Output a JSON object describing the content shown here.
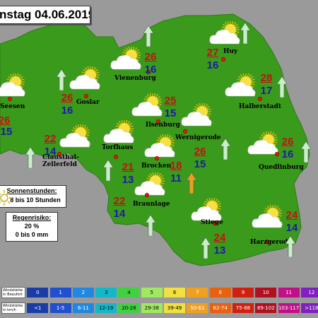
{
  "header": {
    "date_text": "nstag 04.06.2019"
  },
  "colors": {
    "land": "#3a9a1c",
    "background": "#9a9a9a",
    "temp_max": "#c41010",
    "temp_min": "#1a1aa8",
    "arrow_green": "#c8f0c8",
    "arrow_orange": "#e8a020"
  },
  "locations": [
    {
      "name": "Seesen",
      "max": "",
      "min": "15"
    },
    {
      "name": "Goslar",
      "max": "26",
      "min": "16"
    },
    {
      "name": "Vienenburg",
      "max": "26",
      "min": "16"
    },
    {
      "name": "Huy",
      "max": "27",
      "min": "16"
    },
    {
      "name": "Halberstadt",
      "max": "28",
      "min": "17"
    },
    {
      "name": "Ilsenburg",
      "max": "25",
      "min": "15"
    },
    {
      "name": "Wernigerode",
      "max": "",
      "min": ""
    },
    {
      "name": "Torfhaus",
      "max": "21",
      "min": "13"
    },
    {
      "name": "Clausthal-Zellerfeld",
      "max": "22",
      "min": "14"
    },
    {
      "name": "Brocken",
      "max": "18",
      "min": "11"
    },
    {
      "name": "Braunlage",
      "max": "22",
      "min": "14"
    },
    {
      "name": "Quedlinburg",
      "max": "26",
      "min": "16"
    },
    {
      "name": "Stiege",
      "max": "24",
      "min": "13"
    },
    {
      "name": "Harzgerode",
      "max": "24",
      "min": "14"
    },
    {
      "name": "",
      "max": "26",
      "min": "15"
    }
  ],
  "seesen_max_partial": "26",
  "sun_box": {
    "title": "Sonnenstunden:",
    "value": "8 bis 10 Stunden"
  },
  "rain_box": {
    "title": "Regenrisiko:",
    "value1": "20 %",
    "value2": "0 bis 0 mm"
  },
  "legend": {
    "row1_label": "Windstärke in Beaufort",
    "row2_label": "Windstärke in km/h",
    "beaufort": [
      "0",
      "1",
      "2",
      "3",
      "4",
      "5",
      "6",
      "7",
      "8",
      "9",
      "10",
      "11",
      "12"
    ],
    "kmh": [
      "<1",
      "1-5",
      "6-11",
      "12-19",
      "20-28",
      "29-38",
      "39-49",
      "50-61",
      "62-74",
      "75-88",
      "89-102",
      "103-117",
      ">118"
    ],
    "colors": [
      "#1a3ca8",
      "#2050d0",
      "#2088e0",
      "#10b8c8",
      "#40d040",
      "#a0e860",
      "#f0e040",
      "#f0a020",
      "#e86010",
      "#d02010",
      "#b01020",
      "#c01088",
      "#8020c0"
    ]
  },
  "icons": {
    "weather": "sun-cloud-icon",
    "wind": "wind-arrow-icon",
    "sun": "sun-icon"
  }
}
